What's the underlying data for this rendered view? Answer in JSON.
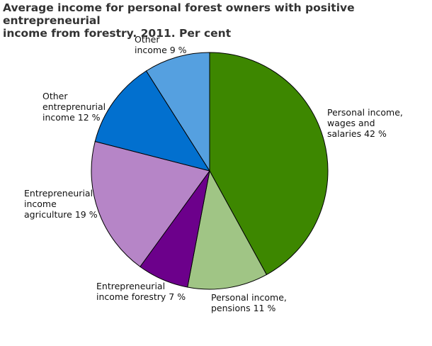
{
  "chart_data": {
    "type": "pie",
    "title": "Average income for personal forest owners with positive entrepreneurial\nincome from forestry. 2011. Per cent",
    "unit": "%",
    "slices": [
      {
        "label": [
          "Personal income,",
          "wages and",
          "salaries 42 %"
        ],
        "value": 42,
        "color": "#3d8700"
      },
      {
        "label": [
          "Personal income,",
          "pensions 11 %"
        ],
        "value": 11,
        "color": "#a0c585"
      },
      {
        "label": [
          "Entrepreneurial",
          "income forestry 7 %"
        ],
        "value": 7,
        "color": "#6c008b"
      },
      {
        "label": [
          "Entrepreneurial",
          "income",
          "agriculture 19 %"
        ],
        "value": 19,
        "color": "#b685c7"
      },
      {
        "label": [
          "Other",
          "entreprenurial",
          "income 12 %"
        ],
        "value": 12,
        "color": "#0270cf"
      },
      {
        "label": [
          "Other",
          "income 9 %"
        ],
        "value": 9,
        "color": "#55a0e0"
      }
    ]
  }
}
